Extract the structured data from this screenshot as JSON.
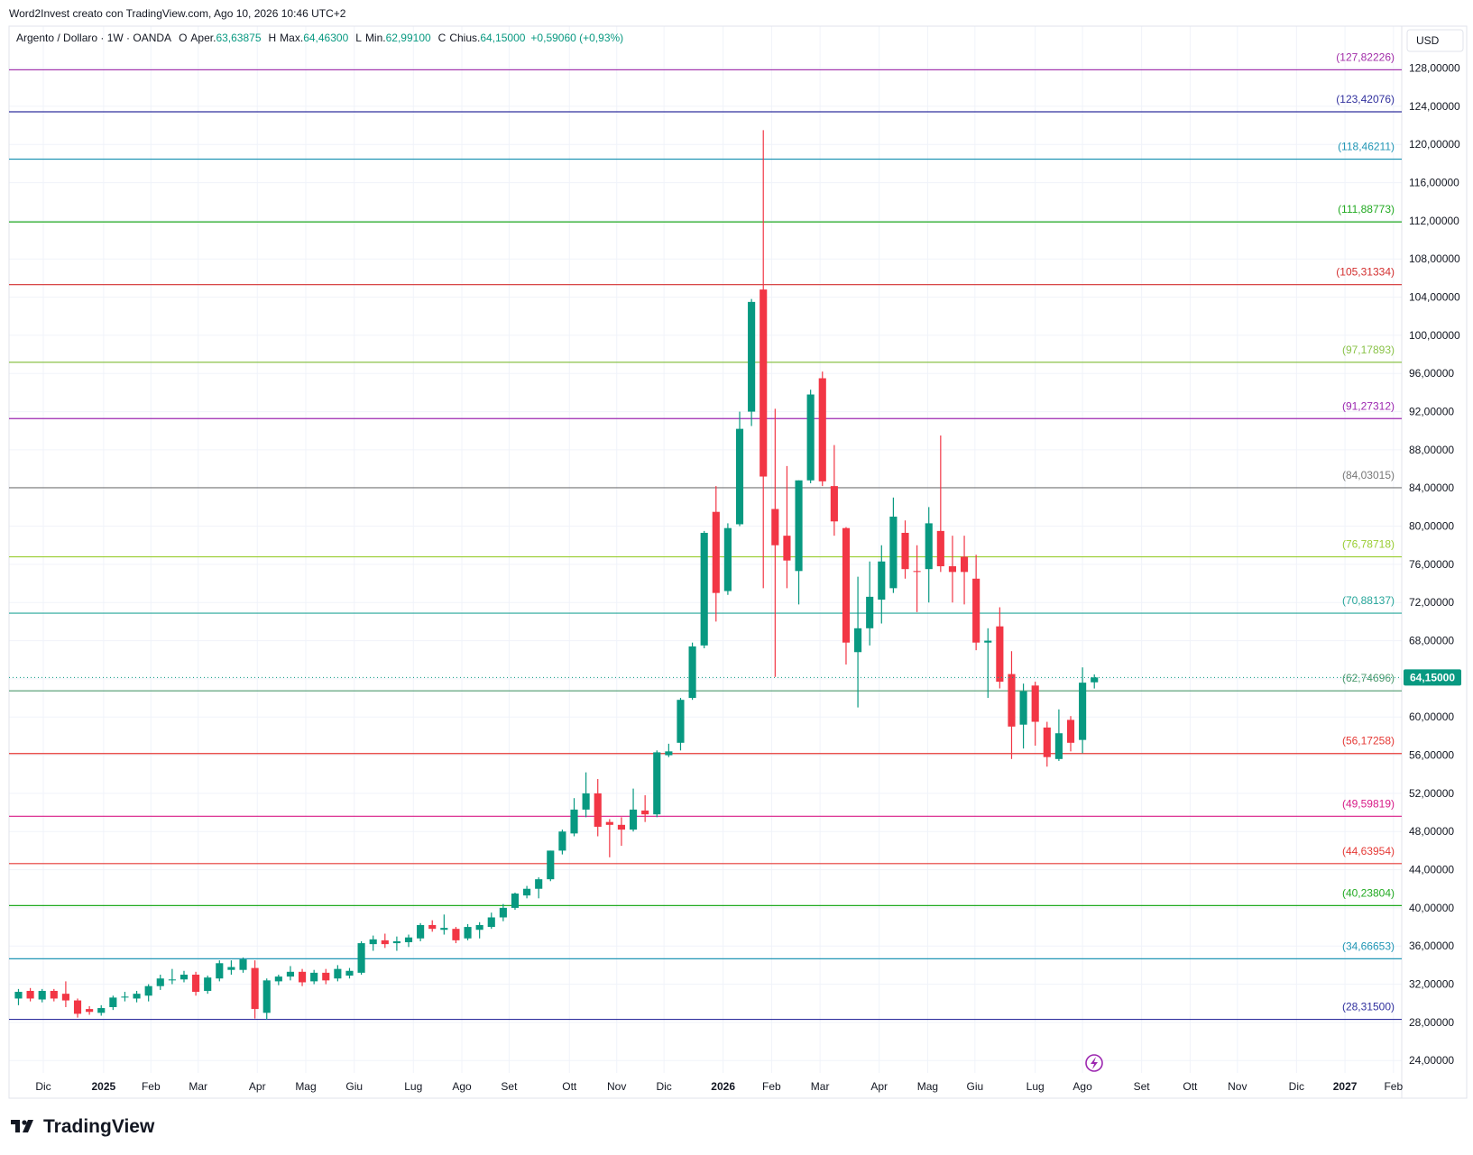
{
  "chart_data": {
    "type": "candlestick",
    "header": "Word2Invest creato con TradingView.com, Ago 10, 2026 10:46 UTC+2",
    "symbol": "Argento / Dollaro · 1W · OANDA",
    "legend": [
      {
        "key": "O",
        "label": "Aper.",
        "value": "63,63875"
      },
      {
        "key": "H",
        "label": "Max.",
        "value": "64,46300"
      },
      {
        "key": "L",
        "label": "Min.",
        "value": "62,99100"
      },
      {
        "key": "C",
        "label": "Chius.",
        "value": "64,15000"
      }
    ],
    "change": "+0,59060 (+0,93%)",
    "currency": "USD",
    "brand": "TradingView",
    "up_color": "#089981",
    "down_color": "#f23645",
    "open": [
      30.5,
      31.3,
      30.4,
      31.3,
      31.0,
      30.3,
      29.4,
      29.0,
      29.6,
      30.6,
      30.5,
      30.8,
      31.8,
      32.4,
      32.5,
      33.0,
      31.3,
      32.6,
      33.5,
      33.5,
      33.7,
      29.0,
      32.3,
      32.8,
      33.3,
      32.3,
      33.2,
      32.6,
      32.9,
      33.2,
      36.2,
      36.6,
      36.3,
      36.4,
      36.8,
      38.2,
      37.7,
      37.8,
      36.8,
      37.7,
      38.0,
      39.0,
      40.0,
      41.3,
      42.0,
      43.0,
      46.0,
      47.8,
      50.3,
      52.0,
      49.0,
      48.7,
      48.2,
      50.2,
      49.8,
      56.0,
      57.3,
      62.0,
      67.5,
      81.5,
      73.2,
      80.2,
      92.0,
      104.8,
      81.8,
      79.0,
      75.3,
      84.8,
      95.5,
      84.2,
      79.8,
      66.8,
      69.3,
      72.3,
      73.5,
      79.3,
      75.3,
      75.5,
      79.5,
      75.8,
      76.8,
      74.5,
      67.8,
      69.5,
      64.5,
      59.2,
      63.3,
      58.9,
      55.6,
      59.7,
      57.6,
      63.63875
    ],
    "high": [
      31.5,
      31.6,
      31.5,
      31.5,
      32.3,
      30.5,
      29.7,
      29.8,
      30.8,
      31.2,
      31.3,
      32.0,
      33.0,
      33.6,
      33.4,
      33.3,
      32.9,
      34.5,
      34.5,
      34.8,
      34.5,
      32.6,
      33.0,
      33.9,
      33.6,
      33.5,
      33.6,
      34.0,
      33.7,
      36.5,
      37.1,
      37.3,
      37.0,
      37.2,
      38.4,
      38.7,
      39.3,
      38.0,
      38.3,
      38.5,
      39.5,
      40.4,
      41.6,
      42.3,
      43.2,
      46.0,
      48.2,
      51.5,
      54.2,
      53.5,
      49.3,
      49.5,
      52.5,
      51.8,
      56.5,
      57.2,
      62.0,
      67.8,
      79.5,
      84.2,
      80.3,
      92.0,
      103.8,
      121.5,
      92.3,
      86.3,
      84.8,
      94.3,
      96.2,
      88.5,
      79.9,
      74.7,
      76.3,
      78.0,
      83.0,
      80.6,
      78.0,
      82.0,
      89.5,
      79.0,
      79.0,
      77.0,
      69.3,
      71.5,
      66.9,
      63.5,
      63.7,
      59.5,
      60.8,
      60.1,
      65.2,
      64.463
    ],
    "low": [
      29.8,
      30.2,
      30.1,
      30.2,
      29.6,
      28.5,
      28.8,
      28.7,
      29.3,
      30.2,
      30.1,
      30.2,
      31.4,
      32.0,
      32.2,
      30.8,
      31.0,
      32.3,
      33.0,
      33.2,
      28.4,
      28.3,
      31.9,
      32.4,
      31.8,
      32.0,
      32.0,
      32.3,
      32.6,
      33.0,
      35.5,
      35.8,
      35.5,
      35.9,
      36.5,
      37.5,
      37.2,
      36.3,
      36.6,
      36.8,
      37.8,
      38.6,
      39.8,
      41.0,
      41.0,
      42.8,
      45.6,
      47.5,
      49.5,
      47.5,
      45.3,
      46.5,
      48.0,
      49.0,
      49.5,
      55.8,
      56.5,
      61.8,
      67.2,
      70.0,
      72.8,
      80.0,
      90.5,
      73.5,
      64.2,
      73.5,
      71.8,
      84.5,
      84.2,
      79.0,
      65.5,
      61.0,
      67.5,
      69.8,
      73.0,
      74.5,
      71.0,
      72.0,
      75.2,
      72.0,
      71.8,
      67.0,
      62.0,
      63.0,
      55.6,
      56.7,
      57.0,
      54.8,
      55.4,
      56.4,
      56.2,
      62.991
    ],
    "close": [
      31.2,
      30.5,
      31.3,
      30.5,
      30.3,
      28.9,
      29.1,
      29.5,
      30.6,
      30.7,
      31.0,
      31.8,
      32.6,
      32.5,
      33.0,
      31.2,
      32.7,
      34.2,
      33.8,
      34.6,
      29.4,
      32.4,
      32.8,
      33.3,
      32.2,
      33.2,
      32.4,
      33.6,
      33.4,
      36.3,
      36.7,
      36.2,
      36.5,
      36.9,
      38.2,
      37.8,
      37.9,
      36.6,
      38.0,
      38.2,
      39.0,
      40.0,
      41.5,
      42.0,
      43.0,
      46.0,
      48.0,
      50.3,
      52.0,
      48.5,
      48.7,
      48.2,
      50.3,
      49.8,
      56.3,
      56.4,
      61.8,
      67.4,
      79.3,
      73.0,
      79.8,
      90.2,
      103.5,
      85.2,
      78.0,
      76.4,
      84.8,
      93.8,
      84.7,
      80.5,
      67.8,
      69.3,
      72.6,
      76.3,
      81.0,
      75.5,
      75.2,
      80.3,
      75.8,
      75.2,
      75.2,
      67.8,
      68.0,
      63.7,
      59.0,
      62.7,
      59.5,
      55.8,
      58.3,
      57.3,
      63.6,
      64.15
    ],
    "xlim": [
      -0.8,
      117.0
    ],
    "xticks": [
      {
        "value": 2.1,
        "label": "Dic"
      },
      {
        "value": 7.2,
        "label": "2025"
      },
      {
        "value": 11.2,
        "label": "Feb"
      },
      {
        "value": 15.2,
        "label": "Mar"
      },
      {
        "value": 20.2,
        "label": "Apr"
      },
      {
        "value": 24.3,
        "label": "Mag"
      },
      {
        "value": 28.4,
        "label": "Giu"
      },
      {
        "value": 33.4,
        "label": "Lug"
      },
      {
        "value": 37.5,
        "label": "Ago"
      },
      {
        "value": 41.5,
        "label": "Set"
      },
      {
        "value": 46.6,
        "label": "Ott"
      },
      {
        "value": 50.6,
        "label": "Nov"
      },
      {
        "value": 54.6,
        "label": "Dic"
      },
      {
        "value": 59.6,
        "label": "2026"
      },
      {
        "value": 63.7,
        "label": "Feb"
      },
      {
        "value": 67.8,
        "label": "Mar"
      },
      {
        "value": 72.8,
        "label": "Apr"
      },
      {
        "value": 76.9,
        "label": "Mag"
      },
      {
        "value": 80.9,
        "label": "Giu"
      },
      {
        "value": 86.0,
        "label": "Lug"
      },
      {
        "value": 90.0,
        "label": "Ago"
      },
      {
        "value": 95.0,
        "label": "Set"
      },
      {
        "value": 99.1,
        "label": "Ott"
      },
      {
        "value": 103.1,
        "label": "Nov"
      },
      {
        "value": 108.1,
        "label": "Dic"
      },
      {
        "value": 112.2,
        "label": "2027"
      },
      {
        "value": 116.3,
        "label": "Feb"
      }
    ],
    "ylim": [
      22.7,
      132.4
    ],
    "yticks": [
      {
        "value": 24,
        "label": "24,00000"
      },
      {
        "value": 28,
        "label": "28,00000"
      },
      {
        "value": 32,
        "label": "32,00000"
      },
      {
        "value": 36,
        "label": "36,00000"
      },
      {
        "value": 40,
        "label": "40,00000"
      },
      {
        "value": 44,
        "label": "44,00000"
      },
      {
        "value": 48,
        "label": "48,00000"
      },
      {
        "value": 52,
        "label": "52,00000"
      },
      {
        "value": 56,
        "label": "56,00000"
      },
      {
        "value": 60,
        "label": "60,00000"
      },
      {
        "value": 64,
        "label": "64,00000"
      },
      {
        "value": 68,
        "label": "68,00000"
      },
      {
        "value": 72,
        "label": "72,00000"
      },
      {
        "value": 76,
        "label": "76,00000"
      },
      {
        "value": 80,
        "label": "80,00000"
      },
      {
        "value": 84,
        "label": "84,00000"
      },
      {
        "value": 88,
        "label": "88,00000"
      },
      {
        "value": 92,
        "label": "92,00000"
      },
      {
        "value": 96,
        "label": "96,00000"
      },
      {
        "value": 100,
        "label": "100,00000"
      },
      {
        "value": 104,
        "label": "104,00000"
      },
      {
        "value": 108,
        "label": "108,00000"
      },
      {
        "value": 112,
        "label": "112,00000"
      },
      {
        "value": 116,
        "label": "116,00000"
      },
      {
        "value": 120,
        "label": "120,00000"
      },
      {
        "value": 124,
        "label": "124,00000"
      },
      {
        "value": 128,
        "label": "128,00000"
      }
    ],
    "grid": true,
    "levels": [
      {
        "value": 127.82226,
        "label": "(127,82226)",
        "color": "#a12ca8"
      },
      {
        "value": 123.42076,
        "label": "(123,42076)",
        "color": "#30309e"
      },
      {
        "value": 118.46211,
        "label": "(118,46211)",
        "color": "#2196b5"
      },
      {
        "value": 111.88773,
        "label": "(111,88773)",
        "color": "#22aa22"
      },
      {
        "value": 105.31334,
        "label": "(105,31334)",
        "color": "#d32f2f"
      },
      {
        "value": 97.17893,
        "label": "(97,17893)",
        "color": "#8bc34a"
      },
      {
        "value": 91.27312,
        "label": "(91,27312)",
        "color": "#9c27b0"
      },
      {
        "value": 84.03015,
        "label": "(84,03015)",
        "color": "#777777"
      },
      {
        "value": 76.78718,
        "label": "(76,78718)",
        "color": "#9acd32"
      },
      {
        "value": 70.88137,
        "label": "(70,88137)",
        "color": "#26a69a"
      },
      {
        "value": 62.74696,
        "label": "(62,74696)",
        "color": "#4d9a6e"
      },
      {
        "value": 56.17258,
        "label": "(56,17258)",
        "color": "#e53935"
      },
      {
        "value": 49.59819,
        "label": "(49,59819)",
        "color": "#d81b87"
      },
      {
        "value": 44.63954,
        "label": "(44,63954)",
        "color": "#e53935"
      },
      {
        "value": 40.23804,
        "label": "(40,23804)",
        "color": "#22aa22"
      },
      {
        "value": 34.66653,
        "label": "(34,66653)",
        "color": "#2196b5"
      },
      {
        "value": 28.315,
        "label": "(28,31500)",
        "color": "#30309e"
      }
    ],
    "last_price": {
      "value": 64.15,
      "label": "64,15000"
    }
  }
}
